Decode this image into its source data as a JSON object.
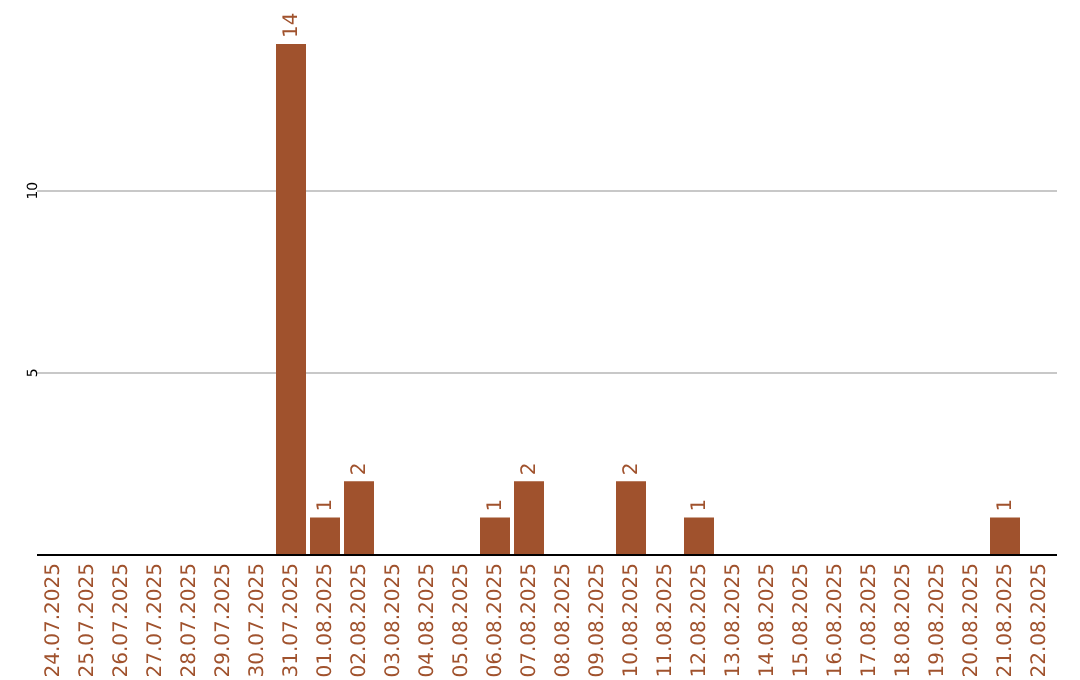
{
  "chart_data": {
    "type": "bar",
    "categories": [
      "24.07.2025",
      "25.07.2025",
      "26.07.2025",
      "27.07.2025",
      "28.07.2025",
      "29.07.2025",
      "30.07.2025",
      "31.07.2025",
      "01.08.2025",
      "02.08.2025",
      "03.08.2025",
      "04.08.2025",
      "05.08.2025",
      "06.08.2025",
      "07.08.2025",
      "08.08.2025",
      "09.08.2025",
      "10.08.2025",
      "11.08.2025",
      "12.08.2025",
      "13.08.2025",
      "14.08.2025",
      "15.08.2025",
      "16.08.2025",
      "17.08.2025",
      "18.08.2025",
      "19.08.2025",
      "20.08.2025",
      "21.08.2025",
      "22.08.2025"
    ],
    "values": [
      0,
      0,
      0,
      0,
      0,
      0,
      0,
      14,
      1,
      2,
      0,
      0,
      0,
      1,
      2,
      0,
      0,
      2,
      0,
      1,
      0,
      0,
      0,
      0,
      0,
      0,
      0,
      0,
      1,
      0
    ],
    "value_labels": [
      null,
      null,
      null,
      null,
      null,
      null,
      null,
      "14",
      "1",
      "2",
      null,
      null,
      null,
      "1",
      "2",
      null,
      null,
      "2",
      null,
      "1",
      null,
      null,
      null,
      null,
      null,
      null,
      null,
      null,
      "1",
      null
    ],
    "color": "#a0522d",
    "ylim": [
      0,
      14
    ],
    "yticks": [
      5,
      10
    ],
    "grid": "y"
  }
}
